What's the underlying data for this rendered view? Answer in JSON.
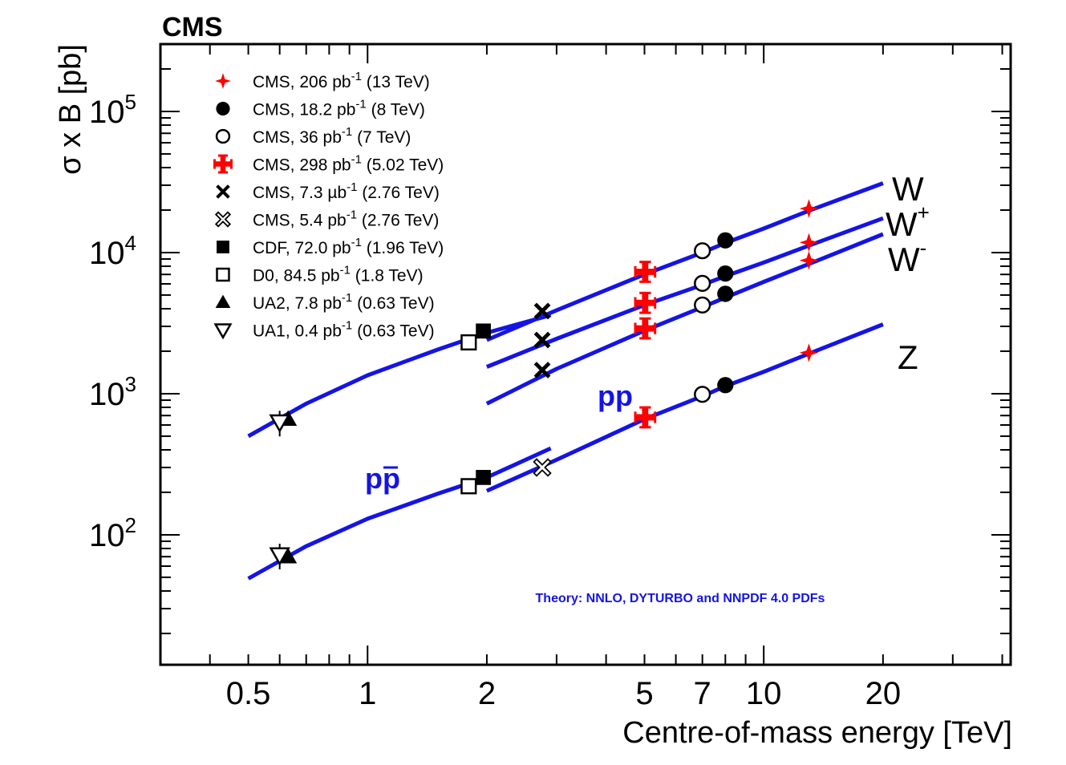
{
  "chart_data": {
    "type": "scatter",
    "experiment": "CMS",
    "xlabel": "Centre-of-mass energy [TeV]",
    "ylabel": "σ x B [pb]",
    "xscale": "log",
    "yscale": "log",
    "xlim": [
      0.3,
      42
    ],
    "ylim": [
      12,
      300000
    ],
    "xticks": [
      {
        "v": 0.5,
        "label": "0.5"
      },
      {
        "v": 1,
        "label": "1"
      },
      {
        "v": 2,
        "label": "2"
      },
      {
        "v": 5,
        "label": "5"
      },
      {
        "v": 7,
        "label": "7"
      },
      {
        "v": 10,
        "label": "10"
      },
      {
        "v": 20,
        "label": "20"
      }
    ],
    "yticks": [
      {
        "v": 100,
        "base": "10",
        "exp": "2"
      },
      {
        "v": 1000,
        "base": "10",
        "exp": "3"
      },
      {
        "v": 10000,
        "base": "10",
        "exp": "4"
      },
      {
        "v": 100000,
        "base": "10",
        "exp": "5"
      }
    ],
    "legend_position": "top-left",
    "legend": [
      {
        "marker": "star4",
        "color": "#ff0000",
        "main": "CMS, 206 pb",
        "sup": "-1",
        "energy": "(13 TeV)"
      },
      {
        "marker": "circle-filled",
        "color": "#000000",
        "main": "CMS, 18.2 pb",
        "sup": "-1",
        "energy": "(8 TeV)"
      },
      {
        "marker": "circle-open",
        "color": "#000000",
        "main": "CMS, 36 pb",
        "sup": "-1",
        "energy": "(7 TeV)"
      },
      {
        "marker": "cross-filled",
        "color": "#ff0000",
        "main": "CMS, 298 pb",
        "sup": "-1",
        "energy": "(5.02 TeV)"
      },
      {
        "marker": "x-filled",
        "color": "#000000",
        "main": "CMS, 7.3 µb",
        "sup": "-1",
        "energy": "(2.76 TeV)"
      },
      {
        "marker": "x-open",
        "color": "#000000",
        "main": "CMS, 5.4 pb",
        "sup": "-1",
        "energy": "(2.76 TeV)"
      },
      {
        "marker": "square-filled",
        "color": "#000000",
        "main": "CDF, 72.0 pb",
        "sup": "-1",
        "energy": "(1.96 TeV)"
      },
      {
        "marker": "square-open",
        "color": "#000000",
        "main": "D0, 84.5 pb",
        "sup": "-1",
        "energy": "(1.8 TeV)"
      },
      {
        "marker": "triangle-up-filled",
        "color": "#000000",
        "main": "UA2, 7.8 pb",
        "sup": "-1",
        "energy": "(0.63 TeV)"
      },
      {
        "marker": "triangle-down-open",
        "color": "#000000",
        "main": "UA1, 0.4 pb",
        "sup": "-1",
        "energy": "(0.63 TeV)"
      }
    ],
    "curve_labels": [
      {
        "id": "W",
        "text": "W",
        "sup": ""
      },
      {
        "id": "Wp",
        "text": "W",
        "sup": "+"
      },
      {
        "id": "Wm",
        "text": "W",
        "sup": "-"
      },
      {
        "id": "Z",
        "text": "Z",
        "sup": ""
      }
    ],
    "region_labels": {
      "ppbar": "pp",
      "pp": "pp"
    },
    "theory_note": "Theory: NNLO, DYTURBO and NNPDF 4.0 PDFs",
    "theory_color": "#1414e6",
    "theory_curves": [
      {
        "name": "W ppbar",
        "points": [
          [
            0.5,
            500
          ],
          [
            0.7,
            850
          ],
          [
            1.0,
            1350
          ],
          [
            1.5,
            2050
          ],
          [
            2.0,
            2700
          ],
          [
            2.9,
            3600
          ]
        ]
      },
      {
        "name": "W pp",
        "points": [
          [
            2.0,
            2400
          ],
          [
            3.0,
            3900
          ],
          [
            5.0,
            7000
          ],
          [
            7.0,
            10000
          ],
          [
            8.0,
            11700
          ],
          [
            10.0,
            14800
          ],
          [
            13.0,
            19800
          ],
          [
            20.0,
            31000
          ]
        ]
      },
      {
        "name": "W+ pp",
        "points": [
          [
            2.0,
            1550
          ],
          [
            3.0,
            2450
          ],
          [
            5.0,
            4250
          ],
          [
            7.0,
            5900
          ],
          [
            8.0,
            6800
          ],
          [
            10.0,
            8500
          ],
          [
            13.0,
            11200
          ],
          [
            20.0,
            17500
          ]
        ]
      },
      {
        "name": "W- pp",
        "points": [
          [
            2.0,
            850
          ],
          [
            3.0,
            1500
          ],
          [
            5.0,
            2800
          ],
          [
            7.0,
            4100
          ],
          [
            8.0,
            4800
          ],
          [
            10.0,
            6200
          ],
          [
            13.0,
            8300
          ],
          [
            20.0,
            13500
          ]
        ]
      },
      {
        "name": "Z ppbar",
        "points": [
          [
            0.5,
            49
          ],
          [
            0.7,
            83
          ],
          [
            1.0,
            130
          ],
          [
            1.5,
            195
          ],
          [
            2.0,
            255
          ],
          [
            2.9,
            410
          ]
        ]
      },
      {
        "name": "Z pp",
        "points": [
          [
            2.0,
            205
          ],
          [
            3.0,
            340
          ],
          [
            5.0,
            660
          ],
          [
            7.0,
            960
          ],
          [
            8.0,
            1130
          ],
          [
            10.0,
            1430
          ],
          [
            13.0,
            1920
          ],
          [
            20.0,
            3100
          ]
        ]
      }
    ],
    "data_points": [
      {
        "label": "CMS 13 TeV",
        "marker": "star4",
        "x": 13,
        "values": [
          20500,
          11800,
          8800,
          1950
        ]
      },
      {
        "label": "CMS 8 TeV",
        "marker": "circle-filled",
        "x": 8,
        "values": [
          12200,
          7100,
          5100,
          1150
        ]
      },
      {
        "label": "CMS 7 TeV",
        "marker": "circle-open",
        "x": 7,
        "values": [
          10300,
          6050,
          4250,
          990
        ]
      },
      {
        "label": "CMS 5.02 TeV",
        "marker": "cross-filled",
        "x": 5.02,
        "values": [
          7300,
          4400,
          2900,
          680
        ]
      },
      {
        "label": "CMS 2.76 TeV (W)",
        "marker": "x-filled",
        "x": 2.76,
        "values": [
          3850,
          2400,
          1470
        ]
      },
      {
        "label": "CMS 2.76 TeV (Z)",
        "marker": "x-open",
        "x": 2.76,
        "values": [
          300
        ]
      },
      {
        "label": "CDF 1.96 TeV",
        "marker": "square-filled",
        "x": 1.96,
        "values": [
          2780,
          255
        ]
      },
      {
        "label": "D0 1.8 TeV",
        "marker": "square-open",
        "x": 1.8,
        "values": [
          2310,
          221
        ]
      },
      {
        "label": "UA2 0.63 TeV",
        "marker": "triangle-up-filled",
        "x": 0.63,
        "values": [
          660,
          70
        ]
      },
      {
        "label": "UA1 0.63 TeV",
        "marker": "triangle-down-open",
        "x": 0.6,
        "values": [
          630,
          72
        ]
      }
    ]
  }
}
